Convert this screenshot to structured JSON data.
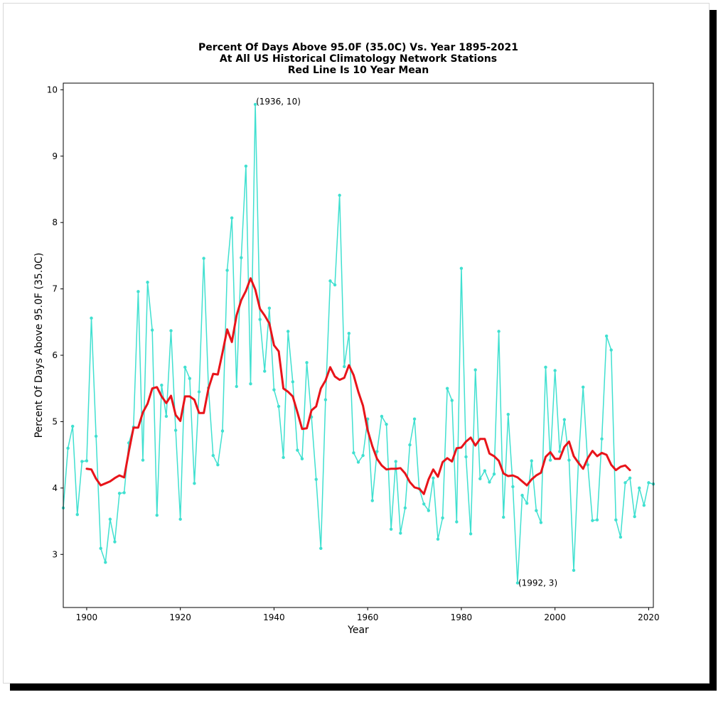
{
  "chart_data": {
    "type": "line",
    "title": "Percent Of Days Above 95.0F (35.0C) Vs. Year 1895-2021",
    "subtitle": "At All US Historical Climatology Network Stations",
    "subtitle2": "Red Line Is 10 Year Mean",
    "xlabel": "Year",
    "ylabel": "Percent Of Days Above 95.0F (35.0C)",
    "xlim": [
      1895,
      2021
    ],
    "ylim": [
      2.2,
      10.1
    ],
    "xticks": [
      "1900",
      "1920",
      "1940",
      "1960",
      "1980",
      "2000",
      "2020"
    ],
    "yticks": [
      "3",
      "4",
      "5",
      "6",
      "7",
      "8",
      "9",
      "10"
    ],
    "grid": false,
    "annotations": [
      {
        "text": "(1936, 10)",
        "x": 1936,
        "y": 9.8
      },
      {
        "text": "(1992, 3)",
        "x": 1992,
        "y": 2.55
      }
    ],
    "series": [
      {
        "color": "#40e0d0",
        "marker": "dot",
        "x": [
          1895,
          1896,
          1897,
          1898,
          1899,
          1900,
          1901,
          1902,
          1903,
          1904,
          1905,
          1906,
          1907,
          1908,
          1909,
          1910,
          1911,
          1912,
          1913,
          1914,
          1915,
          1916,
          1917,
          1918,
          1919,
          1920,
          1921,
          1922,
          1923,
          1924,
          1925,
          1926,
          1927,
          1928,
          1929,
          1930,
          1931,
          1932,
          1933,
          1934,
          1935,
          1936,
          1937,
          1938,
          1939,
          1940,
          1941,
          1942,
          1943,
          1944,
          1945,
          1946,
          1947,
          1948,
          1949,
          1950,
          1951,
          1952,
          1953,
          1954,
          1955,
          1956,
          1957,
          1958,
          1959,
          1960,
          1961,
          1962,
          1963,
          1964,
          1965,
          1966,
          1967,
          1968,
          1969,
          1970,
          1971,
          1972,
          1973,
          1974,
          1975,
          1976,
          1977,
          1978,
          1979,
          1980,
          1981,
          1982,
          1983,
          1984,
          1985,
          1986,
          1987,
          1988,
          1989,
          1990,
          1991,
          1992,
          1993,
          1994,
          1995,
          1996,
          1997,
          1998,
          1999,
          2000,
          2001,
          2002,
          2003,
          2004,
          2005,
          2006,
          2007,
          2008,
          2009,
          2010,
          2011,
          2012,
          2013,
          2014,
          2015,
          2016,
          2017,
          2018,
          2019,
          2020,
          2021
        ],
        "values": [
          3.7,
          4.6,
          4.93,
          3.6,
          4.4,
          4.41,
          6.56,
          4.78,
          3.09,
          2.88,
          3.53,
          3.19,
          3.92,
          3.93,
          4.68,
          4.92,
          6.96,
          4.42,
          7.1,
          6.38,
          3.59,
          5.55,
          5.08,
          6.37,
          4.87,
          3.53,
          5.82,
          5.65,
          4.07,
          5.45,
          7.46,
          5.51,
          4.49,
          4.35,
          4.86,
          7.28,
          8.07,
          5.53,
          7.47,
          8.85,
          5.57,
          9.78,
          6.54,
          5.76,
          6.71,
          5.48,
          5.23,
          4.46,
          6.36,
          5.6,
          4.57,
          4.44,
          5.89,
          5.07,
          4.13,
          3.09,
          5.33,
          7.12,
          7.06,
          8.41,
          5.83,
          6.33,
          4.53,
          4.39,
          4.49,
          5.04,
          3.81,
          4.55,
          5.08,
          4.96,
          3.38,
          4.4,
          3.32,
          3.7,
          4.65,
          5.04,
          3.99,
          3.76,
          3.66,
          4.15,
          3.23,
          3.55,
          5.5,
          5.32,
          3.49,
          7.31,
          4.47,
          3.31,
          5.78,
          4.14,
          4.26,
          4.09,
          4.21,
          6.36,
          3.56,
          5.11,
          4.02,
          2.57,
          3.89,
          3.77,
          4.41,
          3.66,
          3.48,
          5.82,
          4.42,
          5.77,
          4.55,
          5.03,
          4.42,
          2.76,
          4.4,
          5.52,
          4.35,
          3.51,
          3.52,
          4.74,
          6.29,
          6.08,
          3.52,
          3.26,
          4.08,
          4.15,
          3.57,
          4.0,
          3.74,
          4.08,
          4.06
        ]
      },
      {
        "color": "#e8141a",
        "marker": "none",
        "x": [
          1900,
          1901,
          1902,
          1903,
          1904,
          1905,
          1906,
          1907,
          1908,
          1909,
          1910,
          1911,
          1912,
          1913,
          1914,
          1915,
          1916,
          1917,
          1918,
          1919,
          1920,
          1921,
          1922,
          1923,
          1924,
          1925,
          1926,
          1927,
          1928,
          1929,
          1930,
          1931,
          1932,
          1933,
          1934,
          1935,
          1936,
          1937,
          1938,
          1939,
          1940,
          1941,
          1942,
          1943,
          1944,
          1945,
          1946,
          1947,
          1948,
          1949,
          1950,
          1951,
          1952,
          1953,
          1954,
          1955,
          1956,
          1957,
          1958,
          1959,
          1960,
          1961,
          1962,
          1963,
          1964,
          1965,
          1966,
          1967,
          1968,
          1969,
          1970,
          1971,
          1972,
          1973,
          1974,
          1975,
          1976,
          1977,
          1978,
          1979,
          1980,
          1981,
          1982,
          1983,
          1984,
          1985,
          1986,
          1987,
          1988,
          1989,
          1990,
          1991,
          1992,
          1993,
          1994,
          1995,
          1996,
          1997,
          1998,
          1999,
          2000,
          2001,
          2002,
          2003,
          2004,
          2005,
          2006,
          2007,
          2008,
          2009,
          2010,
          2011,
          2012,
          2013,
          2014,
          2015,
          2016
        ],
        "values": [
          4.29,
          4.28,
          4.14,
          4.04,
          4.07,
          4.1,
          4.15,
          4.19,
          4.16,
          4.55,
          4.91,
          4.91,
          5.14,
          5.27,
          5.5,
          5.52,
          5.38,
          5.28,
          5.39,
          5.1,
          5.01,
          5.38,
          5.38,
          5.33,
          5.13,
          5.13,
          5.5,
          5.72,
          5.71,
          6.04,
          6.39,
          6.2,
          6.6,
          6.83,
          6.97,
          7.16,
          6.99,
          6.7,
          6.6,
          6.48,
          6.15,
          6.06,
          5.5,
          5.45,
          5.38,
          5.14,
          4.89,
          4.9,
          5.17,
          5.23,
          5.5,
          5.62,
          5.82,
          5.68,
          5.63,
          5.66,
          5.85,
          5.7,
          5.45,
          5.24,
          4.87,
          4.63,
          4.44,
          4.34,
          4.28,
          4.29,
          4.29,
          4.3,
          4.22,
          4.09,
          4.01,
          3.99,
          3.91,
          4.13,
          4.28,
          4.17,
          4.39,
          4.45,
          4.4,
          4.6,
          4.61,
          4.7,
          4.76,
          4.64,
          4.74,
          4.74,
          4.52,
          4.48,
          4.41,
          4.22,
          4.18,
          4.19,
          4.16,
          4.1,
          4.04,
          4.13,
          4.19,
          4.23,
          4.47,
          4.54,
          4.44,
          4.44,
          4.62,
          4.7,
          4.48,
          4.38,
          4.29,
          4.45,
          4.56,
          4.48,
          4.53,
          4.5,
          4.35,
          4.27,
          4.32,
          4.34,
          4.27
        ]
      }
    ]
  }
}
